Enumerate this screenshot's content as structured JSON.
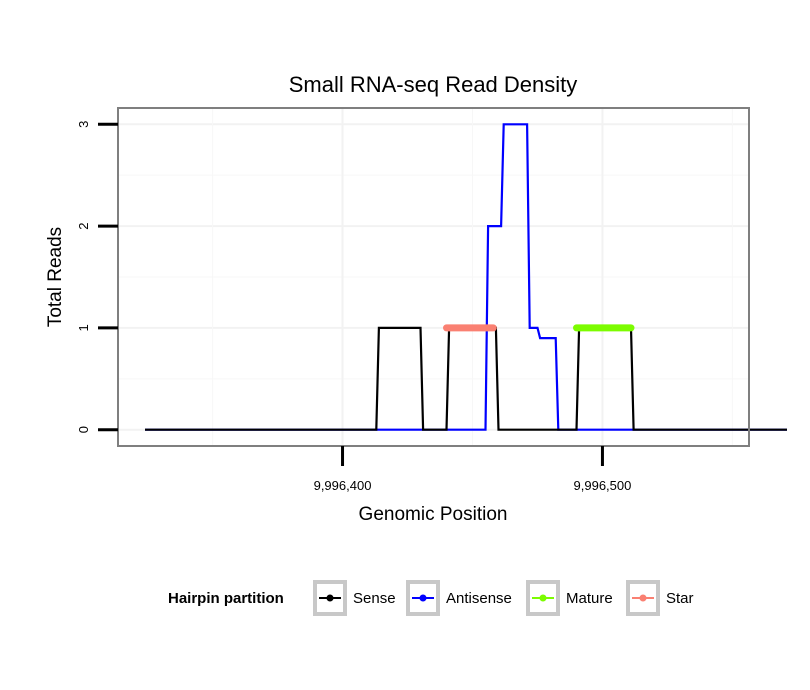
{
  "chart_data": {
    "type": "line",
    "title": "Small RNA-seq Read Density",
    "xlabel": "Genomic Position",
    "ylabel": "Total Reads",
    "xlim": [
      9996314,
      9996556
    ],
    "ylim": [
      -0.15,
      3.15
    ],
    "x_ticks": [
      {
        "value": 9996400,
        "label": "9,996,400"
      },
      {
        "value": 9996500,
        "label": "9,996,500"
      }
    ],
    "y_ticks": [
      {
        "value": 0,
        "label": "0"
      },
      {
        "value": 1,
        "label": "1"
      },
      {
        "value": 2,
        "label": "2"
      },
      {
        "value": 3,
        "label": "3"
      }
    ],
    "grid": true,
    "legend": {
      "title": "Hairpin partition",
      "placement": "bottom",
      "entries": [
        {
          "name": "Sense",
          "color": "#000000"
        },
        {
          "name": "Antisense",
          "color": "#0000ff"
        },
        {
          "name": "Mature",
          "color": "#7cfc00"
        },
        {
          "name": "Star",
          "color": "#fa8072"
        }
      ]
    },
    "series": [
      {
        "name": "Sense",
        "color": "#000000",
        "x": [
          9996324,
          9996413,
          9996414,
          9996430,
          9996431,
          9996440,
          9996441,
          9996459,
          9996460,
          9996490,
          9996491,
          9996511,
          9996512,
          9996571
        ],
        "values": [
          0,
          0,
          1,
          1,
          0,
          0,
          1,
          1,
          0,
          0,
          1,
          1,
          0,
          0
        ]
      },
      {
        "name": "Antisense",
        "color": "#0000ff",
        "x": [
          9996324,
          9996455,
          9996456,
          9996461,
          9996462,
          9996471,
          9996472,
          9996475,
          9996476,
          9996482,
          9996483,
          9996571
        ],
        "values": [
          0,
          0,
          2,
          2,
          3,
          3,
          1,
          1,
          0.9,
          0.9,
          0,
          0
        ]
      },
      {
        "name": "Mature",
        "color": "#7cfc00",
        "x": [
          9996490,
          9996511
        ],
        "values": [
          1,
          1
        ]
      },
      {
        "name": "Star",
        "color": "#fa8072",
        "x": [
          9996440,
          9996458
        ],
        "values": [
          1,
          1
        ]
      }
    ]
  }
}
